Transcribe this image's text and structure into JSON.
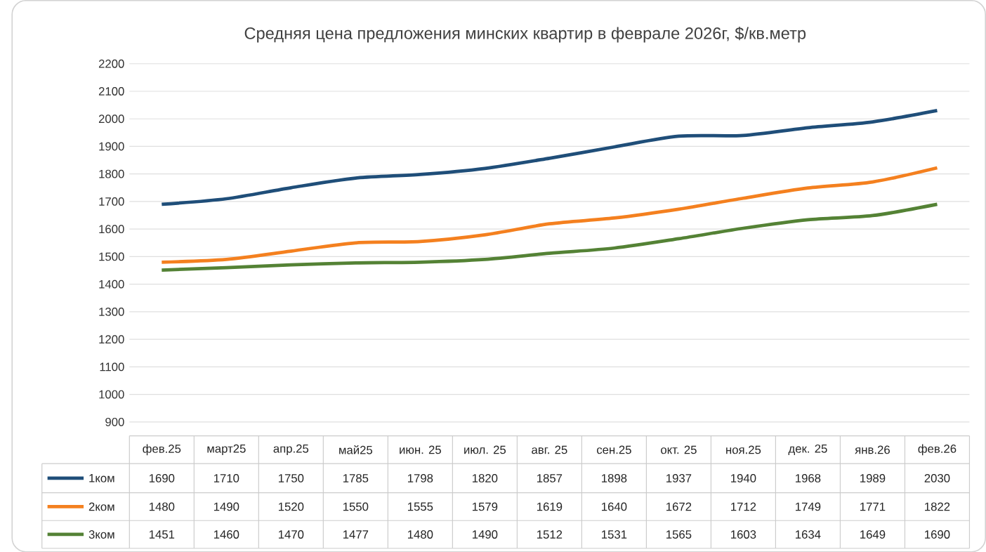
{
  "chart_data": {
    "type": "line",
    "title": "Средняя цена предложения минских квартир в феврале 2026г, $/кв.метр",
    "categories": [
      "фев.25",
      "март25",
      "апр.25",
      "май25",
      "июн. 25",
      "июл. 25",
      "авг. 25",
      "сен.25",
      "окт. 25",
      "ноя.25",
      "дек. 25",
      "янв.26",
      "фев.26"
    ],
    "series": [
      {
        "name": "1ком",
        "color": "#1f4e79",
        "values": [
          1690,
          1710,
          1750,
          1785,
          1798,
          1820,
          1857,
          1898,
          1937,
          1940,
          1968,
          1989,
          2030
        ]
      },
      {
        "name": "2ком",
        "color": "#f4801f",
        "values": [
          1480,
          1490,
          1520,
          1550,
          1555,
          1579,
          1619,
          1640,
          1672,
          1712,
          1749,
          1771,
          1822
        ]
      },
      {
        "name": "3ком",
        "color": "#548235",
        "values": [
          1451,
          1460,
          1470,
          1477,
          1480,
          1490,
          1512,
          1531,
          1565,
          1603,
          1634,
          1649,
          1690
        ]
      }
    ],
    "ylim": [
      900,
      2200
    ],
    "yticks": [
      900,
      1000,
      1100,
      1200,
      1300,
      1400,
      1500,
      1600,
      1700,
      1800,
      1900,
      2000,
      2100,
      2200
    ],
    "grid": "y",
    "legend": "bottom",
    "data_labels": true,
    "marker": "none",
    "line_style": "solid"
  }
}
